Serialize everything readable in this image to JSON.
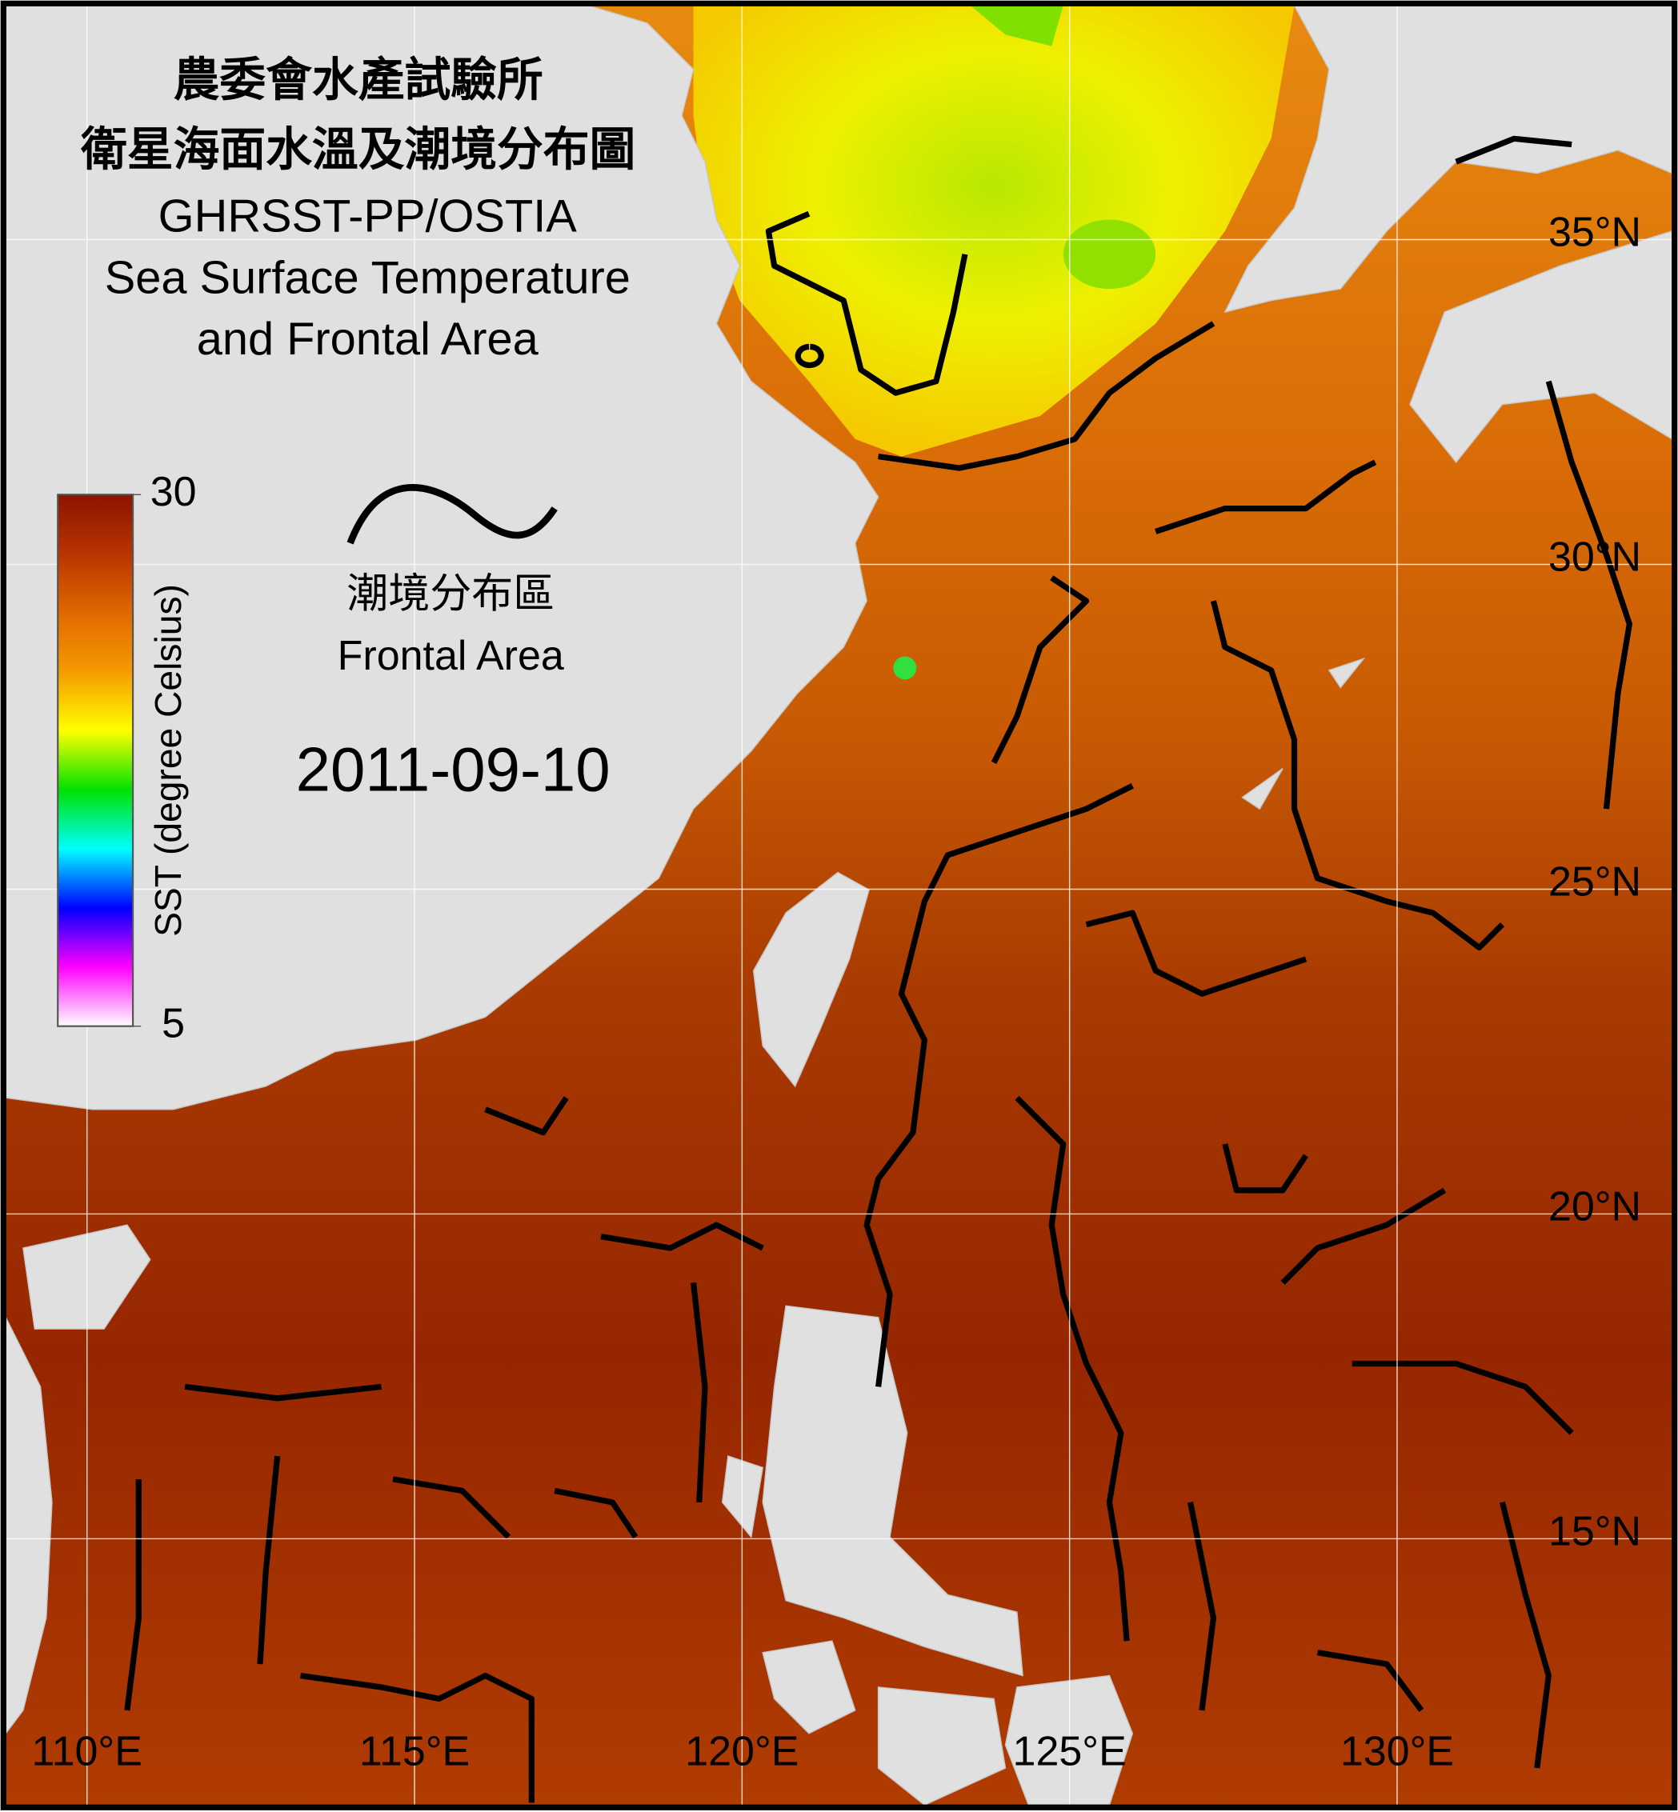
{
  "header": {
    "title_lines": [
      "農委會水產試驗所",
      "衛星海面水溫及潮境分布圖",
      "GHRSST-PP/OSTIA",
      "Sea Surface Temperature",
      "and Frontal Area"
    ]
  },
  "colorbar": {
    "label": "SST (degree Celsius)",
    "range": [
      5,
      30
    ],
    "ticks": [
      30,
      5
    ],
    "colors": [
      "#8b1400",
      "#b83400",
      "#e06800",
      "#f59a00",
      "#ffff00",
      "#00e000",
      "#00ffff",
      "#0000ff",
      "#ff00ff",
      "#ffffff"
    ]
  },
  "legend": {
    "label_zh": "潮境分布區",
    "label_en": "Frontal Area"
  },
  "date": "2011-09-10",
  "map": {
    "lon_range": [
      108.76,
      134.2
    ],
    "lat_range": [
      10.9,
      38.6
    ],
    "lat_lines": [
      {
        "value": 35,
        "label": "35°N"
      },
      {
        "value": 30,
        "label": "30°N"
      },
      {
        "value": 25,
        "label": "25°N"
      },
      {
        "value": 20,
        "label": "20°N"
      },
      {
        "value": 15,
        "label": "15°N"
      }
    ],
    "lon_lines": [
      {
        "value": 110,
        "label": "110°E"
      },
      {
        "value": 115,
        "label": "115°E"
      },
      {
        "value": 120,
        "label": "120°E"
      },
      {
        "value": 125,
        "label": "125°E"
      },
      {
        "value": 130,
        "label": "130°E"
      }
    ]
  }
}
